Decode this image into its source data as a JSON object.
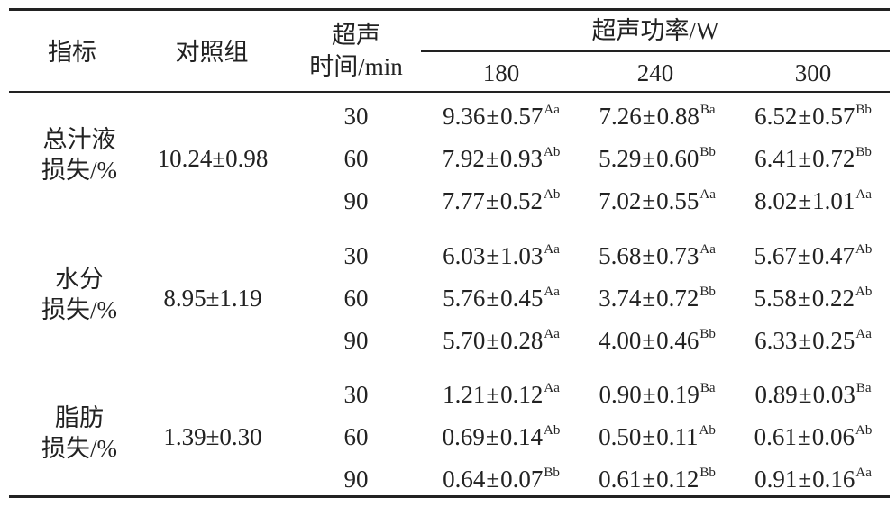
{
  "table": {
    "headers": {
      "indicator": "指标",
      "control": "对照组",
      "time_line1": "超声",
      "time_line2": "时间/min",
      "power": "超声功率/W",
      "powers": [
        "180",
        "240",
        "300"
      ]
    },
    "groups": [
      {
        "label_line1": "总汁液",
        "label_line2": "损失/%",
        "control": "10.24±0.98",
        "rows": [
          {
            "time": "30",
            "cells": [
              {
                "v": "9.36",
                "sd": "0.57",
                "sup": "Aa"
              },
              {
                "v": "7.26",
                "sd": "0.88",
                "sup": "Ba"
              },
              {
                "v": "6.52",
                "sd": "0.57",
                "sup": "Bb"
              }
            ]
          },
          {
            "time": "60",
            "cells": [
              {
                "v": "7.92",
                "sd": "0.93",
                "sup": "Ab"
              },
              {
                "v": "5.29",
                "sd": "0.60",
                "sup": "Bb"
              },
              {
                "v": "6.41",
                "sd": "0.72",
                "sup": "Bb"
              }
            ]
          },
          {
            "time": "90",
            "cells": [
              {
                "v": "7.77",
                "sd": "0.52",
                "sup": "Ab"
              },
              {
                "v": "7.02",
                "sd": "0.55",
                "sup": "Aa"
              },
              {
                "v": "8.02",
                "sd": "1.01",
                "sup": "Aa"
              }
            ]
          }
        ]
      },
      {
        "label_line1": "水分",
        "label_line2": "损失/%",
        "control": "8.95±1.19",
        "rows": [
          {
            "time": "30",
            "cells": [
              {
                "v": "6.03",
                "sd": "1.03",
                "sup": "Aa"
              },
              {
                "v": "5.68",
                "sd": "0.73",
                "sup": "Aa"
              },
              {
                "v": "5.67",
                "sd": "0.47",
                "sup": "Ab"
              }
            ]
          },
          {
            "time": "60",
            "cells": [
              {
                "v": "5.76",
                "sd": "0.45",
                "sup": "Aa"
              },
              {
                "v": "3.74",
                "sd": "0.72",
                "sup": "Bb"
              },
              {
                "v": "5.58",
                "sd": "0.22",
                "sup": "Ab"
              }
            ]
          },
          {
            "time": "90",
            "cells": [
              {
                "v": "5.70",
                "sd": "0.28",
                "sup": "Aa"
              },
              {
                "v": "4.00",
                "sd": "0.46",
                "sup": "Bb"
              },
              {
                "v": "6.33",
                "sd": "0.25",
                "sup": "Aa"
              }
            ]
          }
        ]
      },
      {
        "label_line1": "脂肪",
        "label_line2": "损失/%",
        "control": "1.39±0.30",
        "rows": [
          {
            "time": "30",
            "cells": [
              {
                "v": "1.21",
                "sd": "0.12",
                "sup": "Aa"
              },
              {
                "v": "0.90",
                "sd": "0.19",
                "sup": "Ba"
              },
              {
                "v": "0.89",
                "sd": "0.03",
                "sup": "Ba"
              }
            ]
          },
          {
            "time": "60",
            "cells": [
              {
                "v": "0.69",
                "sd": "0.14",
                "sup": "Ab"
              },
              {
                "v": "0.50",
                "sd": "0.11",
                "sup": "Ab"
              },
              {
                "v": "0.61",
                "sd": "0.06",
                "sup": "Ab"
              }
            ]
          },
          {
            "time": "90",
            "cells": [
              {
                "v": "0.64",
                "sd": "0.07",
                "sup": "Bb"
              },
              {
                "v": "0.61",
                "sd": "0.12",
                "sup": "Bb"
              },
              {
                "v": "0.91",
                "sd": "0.16",
                "sup": "Aa"
              }
            ]
          }
        ]
      }
    ]
  }
}
